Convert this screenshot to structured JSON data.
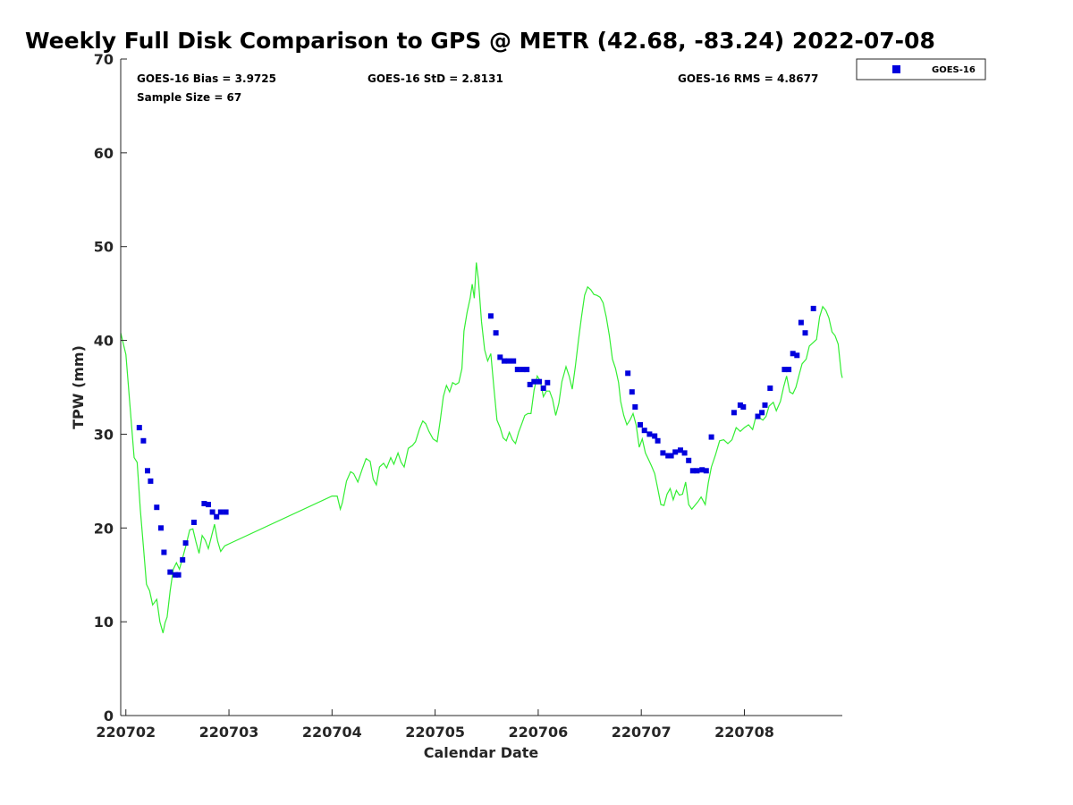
{
  "chart_data": {
    "type": "scatter",
    "title": "Weekly Full Disk Comparison to GPS @ METR (42.68, -83.24) 2022-07-08",
    "xlabel": "Calendar Date",
    "ylabel": "TPW (mm)",
    "xlim": [
      220701.95,
      220708.95
    ],
    "ylim": [
      0,
      70
    ],
    "yticks": [
      0,
      10,
      20,
      30,
      40,
      50,
      60,
      70
    ],
    "xticks": [
      {
        "value": 220702,
        "label": "220702"
      },
      {
        "value": 220703,
        "label": "220703"
      },
      {
        "value": 220704,
        "label": "220704"
      },
      {
        "value": 220705,
        "label": "220705"
      },
      {
        "value": 220706,
        "label": "220706"
      },
      {
        "value": 220707,
        "label": "220707"
      },
      {
        "value": 220708,
        "label": "220708"
      }
    ],
    "stats": {
      "bias": "GOES-16 Bias = 3.9725",
      "std": "GOES-16 StD = 2.8131",
      "rms": "GOES-16 RMS = 4.8677",
      "sample": "Sample Size = 67"
    },
    "legend": {
      "label": "GOES-16",
      "position": "top-right, outside plot"
    },
    "colors": {
      "goes": "#0000dd",
      "gps": "#33ee33",
      "axis": "#262626"
    },
    "series": [
      {
        "name": "GPS",
        "kind": "line",
        "points": [
          [
            220701.95,
            40.8
          ],
          [
            220702.0,
            38.5
          ],
          [
            220702.04,
            33.0
          ],
          [
            220702.08,
            27.5
          ],
          [
            220702.11,
            27.0
          ],
          [
            220702.14,
            22.0
          ],
          [
            220702.17,
            18.0
          ],
          [
            220702.2,
            14.0
          ],
          [
            220702.23,
            13.3
          ],
          [
            220702.26,
            11.8
          ],
          [
            220702.3,
            12.4
          ],
          [
            220702.33,
            10.0
          ],
          [
            220702.36,
            8.8
          ],
          [
            220702.38,
            9.9
          ],
          [
            220702.4,
            10.5
          ],
          [
            220702.43,
            13.3
          ],
          [
            220702.46,
            15.6
          ],
          [
            220702.49,
            16.3
          ],
          [
            220702.52,
            15.6
          ],
          [
            220702.55,
            16.8
          ],
          [
            220702.58,
            18.0
          ],
          [
            220702.62,
            19.8
          ],
          [
            220702.65,
            19.9
          ],
          [
            220702.68,
            18.5
          ],
          [
            220702.71,
            17.3
          ],
          [
            220702.74,
            19.2
          ],
          [
            220702.77,
            18.7
          ],
          [
            220702.8,
            17.8
          ],
          [
            220702.83,
            19.1
          ],
          [
            220702.86,
            20.4
          ],
          [
            220702.89,
            18.6
          ],
          [
            220702.92,
            17.5
          ],
          [
            220702.96,
            18.1
          ],
          [
            220704.0,
            23.4
          ],
          [
            220704.05,
            23.4
          ],
          [
            220704.08,
            22.0
          ],
          [
            220704.1,
            22.7
          ],
          [
            220704.14,
            25.0
          ],
          [
            220704.18,
            26.0
          ],
          [
            220704.21,
            25.8
          ],
          [
            220704.25,
            24.9
          ],
          [
            220704.29,
            26.2
          ],
          [
            220704.33,
            27.4
          ],
          [
            220704.37,
            27.1
          ],
          [
            220704.4,
            25.2
          ],
          [
            220704.43,
            24.6
          ],
          [
            220704.46,
            26.5
          ],
          [
            220704.5,
            26.9
          ],
          [
            220704.53,
            26.4
          ],
          [
            220704.57,
            27.5
          ],
          [
            220704.6,
            26.8
          ],
          [
            220704.64,
            28.0
          ],
          [
            220704.67,
            27.0
          ],
          [
            220704.7,
            26.5
          ],
          [
            220704.74,
            28.5
          ],
          [
            220704.78,
            28.8
          ],
          [
            220704.81,
            29.2
          ],
          [
            220704.85,
            30.6
          ],
          [
            220704.88,
            31.4
          ],
          [
            220704.91,
            31.1
          ],
          [
            220704.94,
            30.3
          ],
          [
            220704.98,
            29.5
          ],
          [
            220705.02,
            29.2
          ],
          [
            220705.05,
            31.5
          ],
          [
            220705.08,
            34.0
          ],
          [
            220705.11,
            35.2
          ],
          [
            220705.14,
            34.5
          ],
          [
            220705.17,
            35.5
          ],
          [
            220705.2,
            35.3
          ],
          [
            220705.23,
            35.5
          ],
          [
            220705.26,
            37.0
          ],
          [
            220705.28,
            41.0
          ],
          [
            220705.31,
            43.0
          ],
          [
            220705.34,
            44.5
          ],
          [
            220705.36,
            46.0
          ],
          [
            220705.38,
            44.5
          ],
          [
            220705.4,
            48.3
          ],
          [
            220705.42,
            46.5
          ],
          [
            220705.45,
            42.0
          ],
          [
            220705.48,
            39.0
          ],
          [
            220705.51,
            37.8
          ],
          [
            220705.54,
            38.6
          ],
          [
            220705.57,
            35.0
          ],
          [
            220705.6,
            31.5
          ],
          [
            220705.63,
            30.7
          ],
          [
            220705.66,
            29.6
          ],
          [
            220705.69,
            29.3
          ],
          [
            220705.72,
            30.2
          ],
          [
            220705.75,
            29.4
          ],
          [
            220705.78,
            29.0
          ],
          [
            220705.81,
            30.2
          ],
          [
            220705.84,
            31.1
          ],
          [
            220705.87,
            32.0
          ],
          [
            220705.9,
            32.2
          ],
          [
            220705.93,
            32.2
          ],
          [
            220705.96,
            34.7
          ],
          [
            220705.99,
            36.2
          ],
          [
            220706.02,
            35.7
          ],
          [
            220706.05,
            34.0
          ],
          [
            220706.08,
            34.6
          ],
          [
            220706.11,
            34.6
          ],
          [
            220706.14,
            33.7
          ],
          [
            220706.17,
            32.0
          ],
          [
            220706.2,
            33.3
          ],
          [
            220706.23,
            35.6
          ],
          [
            220706.27,
            37.2
          ],
          [
            220706.3,
            36.2
          ],
          [
            220706.33,
            34.8
          ],
          [
            220706.36,
            37.2
          ],
          [
            220706.39,
            40.0
          ],
          [
            220706.42,
            42.5
          ],
          [
            220706.45,
            44.8
          ],
          [
            220706.48,
            45.7
          ],
          [
            220706.51,
            45.4
          ],
          [
            220706.54,
            44.9
          ],
          [
            220706.57,
            44.8
          ],
          [
            220706.6,
            44.6
          ],
          [
            220706.63,
            44.0
          ],
          [
            220706.66,
            42.5
          ],
          [
            220706.69,
            40.5
          ],
          [
            220706.72,
            38.0
          ],
          [
            220706.75,
            37.0
          ],
          [
            220706.78,
            35.5
          ],
          [
            220706.8,
            33.5
          ],
          [
            220706.83,
            32.0
          ],
          [
            220706.86,
            31.0
          ],
          [
            220706.89,
            31.5
          ],
          [
            220706.92,
            32.2
          ],
          [
            220706.95,
            31.0
          ],
          [
            220706.98,
            28.6
          ],
          [
            220707.01,
            29.5
          ],
          [
            220707.04,
            28.0
          ],
          [
            220707.07,
            27.3
          ],
          [
            220707.1,
            26.6
          ],
          [
            220707.13,
            25.8
          ],
          [
            220707.16,
            24.2
          ],
          [
            220707.19,
            22.5
          ],
          [
            220707.22,
            22.4
          ],
          [
            220707.25,
            23.6
          ],
          [
            220707.28,
            24.2
          ],
          [
            220707.31,
            23.0
          ],
          [
            220707.34,
            24.0
          ],
          [
            220707.37,
            23.5
          ],
          [
            220707.4,
            23.6
          ],
          [
            220707.43,
            24.9
          ],
          [
            220707.46,
            22.5
          ],
          [
            220707.49,
            22.0
          ],
          [
            220707.52,
            22.4
          ],
          [
            220707.55,
            22.8
          ],
          [
            220707.58,
            23.3
          ],
          [
            220707.62,
            22.5
          ],
          [
            220707.65,
            24.8
          ],
          [
            220707.68,
            26.5
          ],
          [
            220707.72,
            27.8
          ],
          [
            220707.76,
            29.3
          ],
          [
            220707.8,
            29.4
          ],
          [
            220707.84,
            29.0
          ],
          [
            220707.88,
            29.4
          ],
          [
            220707.92,
            30.7
          ],
          [
            220707.96,
            30.3
          ],
          [
            220708.0,
            30.7
          ],
          [
            220708.04,
            31.0
          ],
          [
            220708.08,
            30.5
          ],
          [
            220708.11,
            31.8
          ],
          [
            220708.14,
            31.8
          ],
          [
            220708.18,
            31.5
          ],
          [
            220708.21,
            31.9
          ],
          [
            220708.24,
            33.0
          ],
          [
            220708.28,
            33.4
          ],
          [
            220708.31,
            32.5
          ],
          [
            220708.35,
            33.5
          ],
          [
            220708.38,
            35.0
          ],
          [
            220708.41,
            36.2
          ],
          [
            220708.44,
            34.5
          ],
          [
            220708.47,
            34.3
          ],
          [
            220708.5,
            35.0
          ],
          [
            220708.53,
            36.3
          ],
          [
            220708.56,
            37.5
          ],
          [
            220708.6,
            38.0
          ],
          [
            220708.63,
            39.4
          ],
          [
            220708.66,
            39.7
          ],
          [
            220708.7,
            40.1
          ],
          [
            220708.73,
            42.5
          ],
          [
            220708.76,
            43.6
          ],
          [
            220708.79,
            43.2
          ],
          [
            220708.82,
            42.4
          ],
          [
            220708.85,
            40.9
          ],
          [
            220708.88,
            40.5
          ],
          [
            220708.91,
            39.6
          ],
          [
            220708.94,
            36.5
          ],
          [
            220708.95,
            36.0
          ]
        ]
      },
      {
        "name": "GOES-16",
        "kind": "scatter",
        "points": [
          [
            220702.13,
            30.7
          ],
          [
            220702.17,
            29.3
          ],
          [
            220702.21,
            26.1
          ],
          [
            220702.24,
            25.0
          ],
          [
            220702.3,
            22.2
          ],
          [
            220702.34,
            20.0
          ],
          [
            220702.37,
            17.4
          ],
          [
            220702.43,
            15.3
          ],
          [
            220702.48,
            15.0
          ],
          [
            220702.51,
            15.0
          ],
          [
            220702.55,
            16.6
          ],
          [
            220702.58,
            18.4
          ],
          [
            220702.66,
            20.6
          ],
          [
            220702.76,
            22.6
          ],
          [
            220702.8,
            22.5
          ],
          [
            220702.84,
            21.7
          ],
          [
            220702.88,
            21.2
          ],
          [
            220702.92,
            21.7
          ],
          [
            220702.97,
            21.7
          ],
          [
            220705.54,
            42.6
          ],
          [
            220705.59,
            40.8
          ],
          [
            220705.63,
            38.2
          ],
          [
            220705.67,
            37.8
          ],
          [
            220705.71,
            37.8
          ],
          [
            220705.76,
            37.8
          ],
          [
            220705.8,
            36.9
          ],
          [
            220705.85,
            36.9
          ],
          [
            220705.89,
            36.9
          ],
          [
            220705.92,
            35.3
          ],
          [
            220705.96,
            35.6
          ],
          [
            220706.01,
            35.6
          ],
          [
            220706.05,
            34.9
          ],
          [
            220706.09,
            35.5
          ],
          [
            220706.87,
            36.5
          ],
          [
            220706.91,
            34.5
          ],
          [
            220706.94,
            32.9
          ],
          [
            220706.99,
            31.0
          ],
          [
            220707.03,
            30.4
          ],
          [
            220707.08,
            30.0
          ],
          [
            220707.13,
            29.8
          ],
          [
            220707.16,
            29.3
          ],
          [
            220707.21,
            28.0
          ],
          [
            220707.26,
            27.7
          ],
          [
            220707.29,
            27.7
          ],
          [
            220707.33,
            28.1
          ],
          [
            220707.38,
            28.3
          ],
          [
            220707.42,
            28.0
          ],
          [
            220707.46,
            27.2
          ],
          [
            220707.5,
            26.1
          ],
          [
            220707.54,
            26.1
          ],
          [
            220707.59,
            26.2
          ],
          [
            220707.63,
            26.1
          ],
          [
            220707.68,
            29.7
          ],
          [
            220707.9,
            32.3
          ],
          [
            220707.96,
            33.1
          ],
          [
            220707.99,
            32.9
          ],
          [
            220708.13,
            31.9
          ],
          [
            220708.17,
            32.3
          ],
          [
            220708.2,
            33.1
          ],
          [
            220708.25,
            34.9
          ],
          [
            220708.39,
            36.9
          ],
          [
            220708.43,
            36.9
          ],
          [
            220708.47,
            38.6
          ],
          [
            220708.51,
            38.4
          ],
          [
            220708.55,
            41.9
          ],
          [
            220708.59,
            40.8
          ],
          [
            220708.67,
            43.4
          ]
        ]
      }
    ]
  }
}
